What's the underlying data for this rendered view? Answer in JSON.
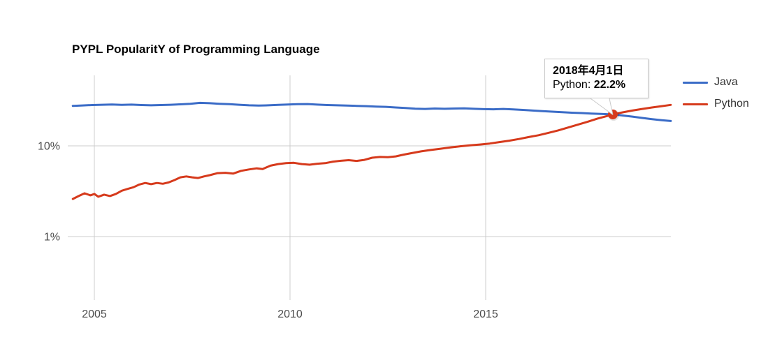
{
  "chart": {
    "title": "PYPL PopularitY of Programming Language"
  },
  "chart_data": {
    "type": "line",
    "title": "PYPL PopularitY of Programming Language",
    "xlabel": "",
    "ylabel": "",
    "y_scale": "log",
    "ylim_percent": [
      0.2,
      60
    ],
    "xlim_year": [
      2004.4,
      2019.8
    ],
    "grid": true,
    "legend_position": "right",
    "x_ticks": [
      {
        "label": "2005",
        "year": 2005
      },
      {
        "label": "2010",
        "year": 2010
      },
      {
        "label": "2015",
        "year": 2015
      }
    ],
    "y_ticks": [
      {
        "label": "10%",
        "value": 10
      },
      {
        "label": "1%",
        "value": 1
      }
    ],
    "series": [
      {
        "name": "Java",
        "color": "#3b6cc7",
        "points": [
          [
            2004.45,
            27.6
          ],
          [
            2004.7,
            27.9
          ],
          [
            2004.95,
            28.2
          ],
          [
            2005.2,
            28.4
          ],
          [
            2005.45,
            28.6
          ],
          [
            2005.7,
            28.3
          ],
          [
            2005.95,
            28.5
          ],
          [
            2006.2,
            28.2
          ],
          [
            2006.45,
            28.0
          ],
          [
            2006.7,
            28.2
          ],
          [
            2006.95,
            28.4
          ],
          [
            2007.2,
            28.7
          ],
          [
            2007.45,
            29.1
          ],
          [
            2007.7,
            29.8
          ],
          [
            2007.95,
            29.5
          ],
          [
            2008.2,
            29.1
          ],
          [
            2008.45,
            28.8
          ],
          [
            2008.7,
            28.4
          ],
          [
            2008.95,
            28.0
          ],
          [
            2009.2,
            27.8
          ],
          [
            2009.45,
            28.0
          ],
          [
            2009.7,
            28.3
          ],
          [
            2009.95,
            28.6
          ],
          [
            2010.2,
            28.8
          ],
          [
            2010.45,
            28.9
          ],
          [
            2010.7,
            28.5
          ],
          [
            2010.95,
            28.2
          ],
          [
            2011.2,
            28.0
          ],
          [
            2011.45,
            27.8
          ],
          [
            2011.7,
            27.6
          ],
          [
            2011.95,
            27.4
          ],
          [
            2012.2,
            27.1
          ],
          [
            2012.45,
            26.9
          ],
          [
            2012.7,
            26.5
          ],
          [
            2012.95,
            26.1
          ],
          [
            2013.2,
            25.7
          ],
          [
            2013.45,
            25.5
          ],
          [
            2013.7,
            25.8
          ],
          [
            2013.95,
            25.6
          ],
          [
            2014.2,
            25.8
          ],
          [
            2014.45,
            25.9
          ],
          [
            2014.7,
            25.6
          ],
          [
            2014.95,
            25.4
          ],
          [
            2015.2,
            25.3
          ],
          [
            2015.45,
            25.5
          ],
          [
            2015.7,
            25.2
          ],
          [
            2015.95,
            24.9
          ],
          [
            2016.2,
            24.5
          ],
          [
            2016.45,
            24.1
          ],
          [
            2016.7,
            23.8
          ],
          [
            2016.95,
            23.5
          ],
          [
            2017.2,
            23.2
          ],
          [
            2017.45,
            23.0
          ],
          [
            2017.7,
            22.7
          ],
          [
            2017.95,
            22.5
          ],
          [
            2018.25,
            22.2
          ],
          [
            2018.5,
            21.6
          ],
          [
            2018.75,
            21.0
          ],
          [
            2019.0,
            20.3
          ],
          [
            2019.25,
            19.7
          ],
          [
            2019.5,
            19.2
          ],
          [
            2019.73,
            18.8
          ]
        ]
      },
      {
        "name": "Python",
        "color": "#d63a1c",
        "points": [
          [
            2004.45,
            2.6
          ],
          [
            2004.6,
            2.8
          ],
          [
            2004.75,
            3.0
          ],
          [
            2004.9,
            2.85
          ],
          [
            2005.0,
            2.95
          ],
          [
            2005.1,
            2.75
          ],
          [
            2005.25,
            2.9
          ],
          [
            2005.4,
            2.8
          ],
          [
            2005.55,
            2.95
          ],
          [
            2005.7,
            3.2
          ],
          [
            2005.85,
            3.35
          ],
          [
            2006.0,
            3.5
          ],
          [
            2006.15,
            3.75
          ],
          [
            2006.3,
            3.9
          ],
          [
            2006.45,
            3.78
          ],
          [
            2006.6,
            3.9
          ],
          [
            2006.75,
            3.82
          ],
          [
            2006.9,
            3.95
          ],
          [
            2007.05,
            4.2
          ],
          [
            2007.2,
            4.5
          ],
          [
            2007.35,
            4.6
          ],
          [
            2007.5,
            4.5
          ],
          [
            2007.65,
            4.42
          ],
          [
            2007.8,
            4.6
          ],
          [
            2007.95,
            4.75
          ],
          [
            2008.15,
            5.0
          ],
          [
            2008.35,
            5.05
          ],
          [
            2008.55,
            4.95
          ],
          [
            2008.75,
            5.3
          ],
          [
            2008.95,
            5.5
          ],
          [
            2009.15,
            5.65
          ],
          [
            2009.3,
            5.55
          ],
          [
            2009.5,
            6.05
          ],
          [
            2009.7,
            6.3
          ],
          [
            2009.9,
            6.45
          ],
          [
            2010.1,
            6.5
          ],
          [
            2010.3,
            6.3
          ],
          [
            2010.5,
            6.2
          ],
          [
            2010.7,
            6.35
          ],
          [
            2010.9,
            6.45
          ],
          [
            2011.1,
            6.7
          ],
          [
            2011.3,
            6.85
          ],
          [
            2011.5,
            6.95
          ],
          [
            2011.7,
            6.82
          ],
          [
            2011.9,
            7.0
          ],
          [
            2012.1,
            7.4
          ],
          [
            2012.3,
            7.55
          ],
          [
            2012.5,
            7.5
          ],
          [
            2012.7,
            7.65
          ],
          [
            2012.9,
            8.0
          ],
          [
            2013.1,
            8.3
          ],
          [
            2013.35,
            8.7
          ],
          [
            2013.6,
            9.0
          ],
          [
            2013.85,
            9.3
          ],
          [
            2014.1,
            9.6
          ],
          [
            2014.35,
            9.9
          ],
          [
            2014.6,
            10.15
          ],
          [
            2014.85,
            10.35
          ],
          [
            2015.1,
            10.6
          ],
          [
            2015.35,
            11.0
          ],
          [
            2015.6,
            11.4
          ],
          [
            2015.85,
            11.9
          ],
          [
            2016.1,
            12.5
          ],
          [
            2016.35,
            13.1
          ],
          [
            2016.6,
            13.9
          ],
          [
            2016.85,
            14.8
          ],
          [
            2017.1,
            15.9
          ],
          [
            2017.35,
            17.1
          ],
          [
            2017.6,
            18.4
          ],
          [
            2017.85,
            19.9
          ],
          [
            2018.1,
            21.3
          ],
          [
            2018.25,
            22.2
          ],
          [
            2018.5,
            23.4
          ],
          [
            2018.75,
            24.5
          ],
          [
            2019.0,
            25.5
          ],
          [
            2019.25,
            26.5
          ],
          [
            2019.5,
            27.4
          ],
          [
            2019.73,
            28.3
          ]
        ]
      }
    ],
    "annotation": {
      "series": "Python",
      "year": 2018.25,
      "value": 22.2
    }
  },
  "tooltip": {
    "date": "2018年4月1日",
    "series_label": "Python: ",
    "value": "22.2%"
  },
  "colors": {
    "grid": "#cccccc",
    "axis_label": "#4d4d4d",
    "legend_text": "#333333",
    "tooltip_border": "#c9c9c9",
    "marker_shadow": "rgba(0,0,0,0.12)"
  }
}
